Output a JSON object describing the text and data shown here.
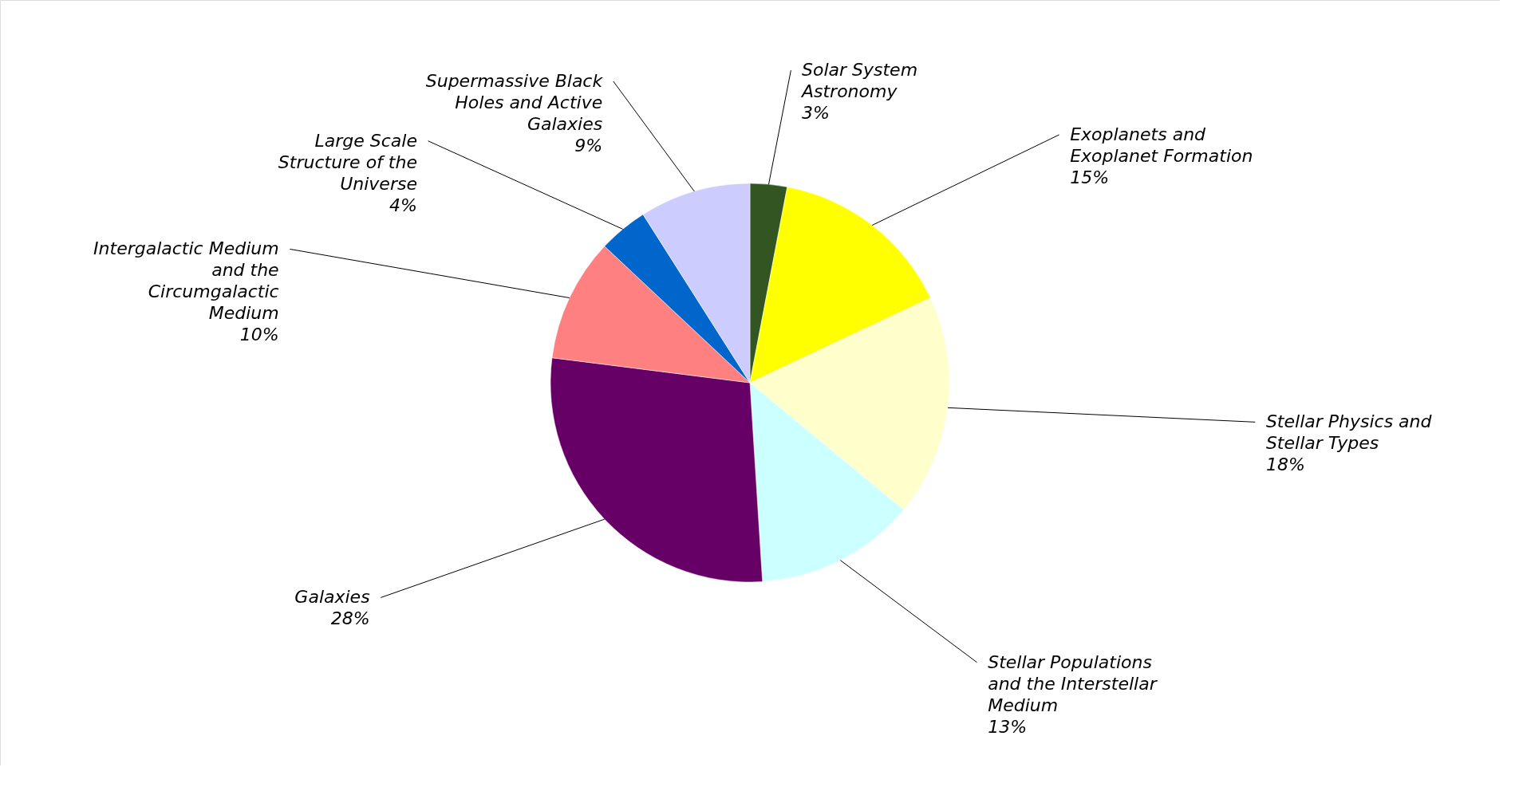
{
  "chart_data": {
    "type": "pie",
    "categories": [
      "Solar System Astronomy",
      "Exoplanets and Exoplanet Formation",
      "Stellar Physics and Stellar Types",
      "Stellar Populations and the Interstellar Medium",
      "Galaxies",
      "Intergalactic Medium and the Circumgalactic Medium",
      "Large Scale Structure of the Universe",
      "Supermassive Black Holes and Active Galaxies"
    ],
    "values": [
      3,
      15,
      18,
      13,
      28,
      10,
      4,
      9
    ],
    "colors": [
      "#335522",
      "#ffff00",
      "#ffffcc",
      "#ccffff",
      "#660066",
      "#ff8080",
      "#0066cc",
      "#ccccff"
    ],
    "value_labels": [
      "3%",
      "15%",
      "18%",
      "13%",
      "28%",
      "10%",
      "4%",
      "9%"
    ]
  }
}
